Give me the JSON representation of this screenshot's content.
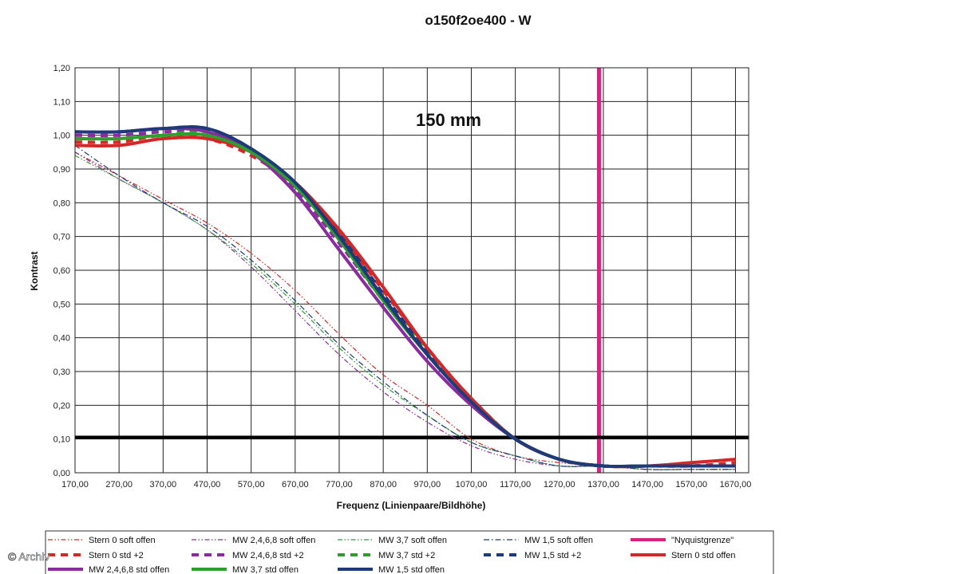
{
  "chart_data": {
    "type": "line",
    "title": "o150f2oe400 - W",
    "annotation": "150 mm",
    "xlabel": "Frequenz (Linienpaare/Bildhöhe)",
    "ylabel": "Kontrast",
    "xlim": [
      170,
      1700
    ],
    "ylim": [
      0,
      1.2
    ],
    "grid": true,
    "legend_position": "bottom",
    "x_ticks": [
      "170,00",
      "270,00",
      "370,00",
      "470,00",
      "570,00",
      "670,00",
      "770,00",
      "870,00",
      "970,00",
      "1070,00",
      "1170,00",
      "1270,00",
      "1370,00",
      "1470,00",
      "1570,00",
      "1670,00"
    ],
    "y_ticks": [
      "0,00",
      "0,10",
      "0,20",
      "0,30",
      "0,40",
      "0,50",
      "0,60",
      "0,70",
      "0,80",
      "0,90",
      "1,00",
      "1,10",
      "1,20"
    ],
    "reference_lines": [
      {
        "name": "\"Nyquistgrenze\"",
        "orientation": "vertical",
        "x": 1360,
        "color": "#d6247f"
      },
      {
        "orientation": "horizontal",
        "y": 0.105,
        "color": "#000000"
      }
    ],
    "series": [
      {
        "name": "Stern 0 soft offen",
        "color": "#d62728",
        "style": "dash-dot-dot",
        "width": 1.2,
        "x": [
          170,
          270,
          370,
          470,
          570,
          670,
          770,
          870,
          970,
          1070,
          1170,
          1270,
          1370,
          1470,
          1570,
          1670
        ],
        "y": [
          0.95,
          0.88,
          0.81,
          0.74,
          0.65,
          0.54,
          0.41,
          0.29,
          0.2,
          0.1,
          0.05,
          0.03,
          0.02,
          0.01,
          0.01,
          0.01
        ]
      },
      {
        "name": "MW 2,4,6,8 soft offen",
        "color": "#8b2c9e",
        "style": "dash-dot-dot",
        "width": 1.2,
        "x": [
          170,
          270,
          370,
          470,
          570,
          670,
          770,
          870,
          970,
          1070,
          1170,
          1270,
          1370,
          1470,
          1570,
          1670
        ],
        "y": [
          0.95,
          0.87,
          0.8,
          0.72,
          0.61,
          0.48,
          0.35,
          0.24,
          0.15,
          0.08,
          0.04,
          0.02,
          0.02,
          0.01,
          0.01,
          0.01
        ]
      },
      {
        "name": "MW 3,7 soft offen",
        "color": "#2ca02c",
        "style": "dash-dot-dot",
        "width": 1.2,
        "x": [
          170,
          270,
          370,
          470,
          570,
          670,
          770,
          870,
          970,
          1070,
          1170,
          1270,
          1370,
          1470,
          1570,
          1670
        ],
        "y": [
          0.94,
          0.87,
          0.8,
          0.72,
          0.62,
          0.5,
          0.37,
          0.26,
          0.17,
          0.09,
          0.05,
          0.02,
          0.02,
          0.01,
          0.01,
          0.01
        ]
      },
      {
        "name": "MW 1,5 soft offen",
        "color": "#1f3a7a",
        "style": "dash-dot",
        "width": 1.2,
        "x": [
          170,
          270,
          370,
          470,
          570,
          670,
          770,
          870,
          970,
          1070,
          1170,
          1270,
          1370,
          1470,
          1570,
          1670
        ],
        "y": [
          0.97,
          0.88,
          0.8,
          0.73,
          0.63,
          0.51,
          0.38,
          0.27,
          0.17,
          0.09,
          0.05,
          0.02,
          0.02,
          0.01,
          0.01,
          0.01
        ]
      },
      {
        "name": "Stern 0 std +2",
        "color": "#d62728",
        "style": "dash",
        "width": 4,
        "x": [
          170,
          270,
          370,
          470,
          570,
          670,
          770,
          870,
          970,
          1070,
          1170,
          1270,
          1370,
          1470,
          1570,
          1670
        ],
        "y": [
          0.98,
          0.98,
          1.0,
          0.99,
          0.94,
          0.85,
          0.71,
          0.54,
          0.37,
          0.22,
          0.1,
          0.04,
          0.02,
          0.02,
          0.02,
          0.03
        ]
      },
      {
        "name": "MW 2,4,6,8 std +2",
        "color": "#8b2c9e",
        "style": "dash",
        "width": 4,
        "x": [
          170,
          270,
          370,
          470,
          570,
          670,
          770,
          870,
          970,
          1070,
          1170,
          1270,
          1370,
          1470,
          1570,
          1670
        ],
        "y": [
          1.0,
          1.0,
          1.01,
          1.01,
          0.95,
          0.84,
          0.68,
          0.51,
          0.35,
          0.21,
          0.1,
          0.04,
          0.02,
          0.02,
          0.02,
          0.02
        ]
      },
      {
        "name": "MW 3,7 std +2",
        "color": "#2ca02c",
        "style": "dash",
        "width": 4,
        "x": [
          170,
          270,
          370,
          470,
          570,
          670,
          770,
          870,
          970,
          1070,
          1170,
          1270,
          1370,
          1470,
          1570,
          1670
        ],
        "y": [
          0.99,
          0.99,
          1.0,
          1.01,
          0.95,
          0.85,
          0.7,
          0.52,
          0.36,
          0.21,
          0.1,
          0.04,
          0.02,
          0.02,
          0.02,
          0.02
        ]
      },
      {
        "name": "MW 1,5 std +2",
        "color": "#1f3a7a",
        "style": "dash",
        "width": 4,
        "x": [
          170,
          270,
          370,
          470,
          570,
          670,
          770,
          870,
          970,
          1070,
          1170,
          1270,
          1370,
          1470,
          1570,
          1670
        ],
        "y": [
          1.01,
          1.01,
          1.02,
          1.02,
          0.96,
          0.86,
          0.71,
          0.53,
          0.36,
          0.22,
          0.1,
          0.04,
          0.02,
          0.02,
          0.02,
          0.02
        ]
      },
      {
        "name": "Stern 0 std offen",
        "color": "#d62728",
        "style": "solid",
        "width": 4,
        "x": [
          170,
          270,
          370,
          470,
          570,
          670,
          770,
          870,
          970,
          1070,
          1170,
          1270,
          1370,
          1470,
          1570,
          1670
        ],
        "y": [
          0.97,
          0.97,
          0.99,
          0.99,
          0.95,
          0.86,
          0.72,
          0.55,
          0.37,
          0.22,
          0.1,
          0.04,
          0.02,
          0.02,
          0.03,
          0.04
        ]
      },
      {
        "name": "MW 2,4,6,8 std offen",
        "color": "#8b2c9e",
        "style": "solid",
        "width": 4,
        "x": [
          170,
          270,
          370,
          470,
          570,
          670,
          770,
          870,
          970,
          1070,
          1170,
          1270,
          1370,
          1470,
          1570,
          1670
        ],
        "y": [
          1.01,
          1.01,
          1.02,
          1.01,
          0.95,
          0.83,
          0.66,
          0.49,
          0.33,
          0.2,
          0.1,
          0.04,
          0.02,
          0.02,
          0.02,
          0.02
        ]
      },
      {
        "name": "MW 3,7 std offen",
        "color": "#2ca02c",
        "style": "solid",
        "width": 4,
        "x": [
          170,
          270,
          370,
          470,
          570,
          670,
          770,
          870,
          970,
          1070,
          1170,
          1270,
          1370,
          1470,
          1570,
          1670
        ],
        "y": [
          0.99,
          0.99,
          1.0,
          1.0,
          0.95,
          0.85,
          0.69,
          0.51,
          0.35,
          0.21,
          0.1,
          0.04,
          0.02,
          0.02,
          0.02,
          0.02
        ]
      },
      {
        "name": "MW 1,5 std offen",
        "color": "#1f3a7a",
        "style": "solid",
        "width": 4,
        "x": [
          170,
          270,
          370,
          470,
          570,
          670,
          770,
          870,
          970,
          1070,
          1170,
          1270,
          1370,
          1470,
          1570,
          1670
        ],
        "y": [
          1.01,
          1.01,
          1.02,
          1.02,
          0.96,
          0.86,
          0.7,
          0.52,
          0.35,
          0.21,
          0.1,
          0.04,
          0.02,
          0.02,
          0.02,
          0.02
        ]
      }
    ],
    "legend_order": [
      "Stern 0 soft offen",
      "MW 2,4,6,8 soft offen",
      "MW 3,7 soft offen",
      "MW 1,5 soft offen",
      "\"Nyquistgrenze\"",
      "Stern 0 std +2",
      "MW 2,4,6,8 std +2",
      "MW 3,7 std +2",
      "MW 1,5 std +2",
      "Stern 0 std offen",
      "MW 2,4,6,8 std offen",
      "MW 3,7 std offen",
      "MW 1,5 std offen"
    ]
  },
  "watermark": "© Archiv"
}
